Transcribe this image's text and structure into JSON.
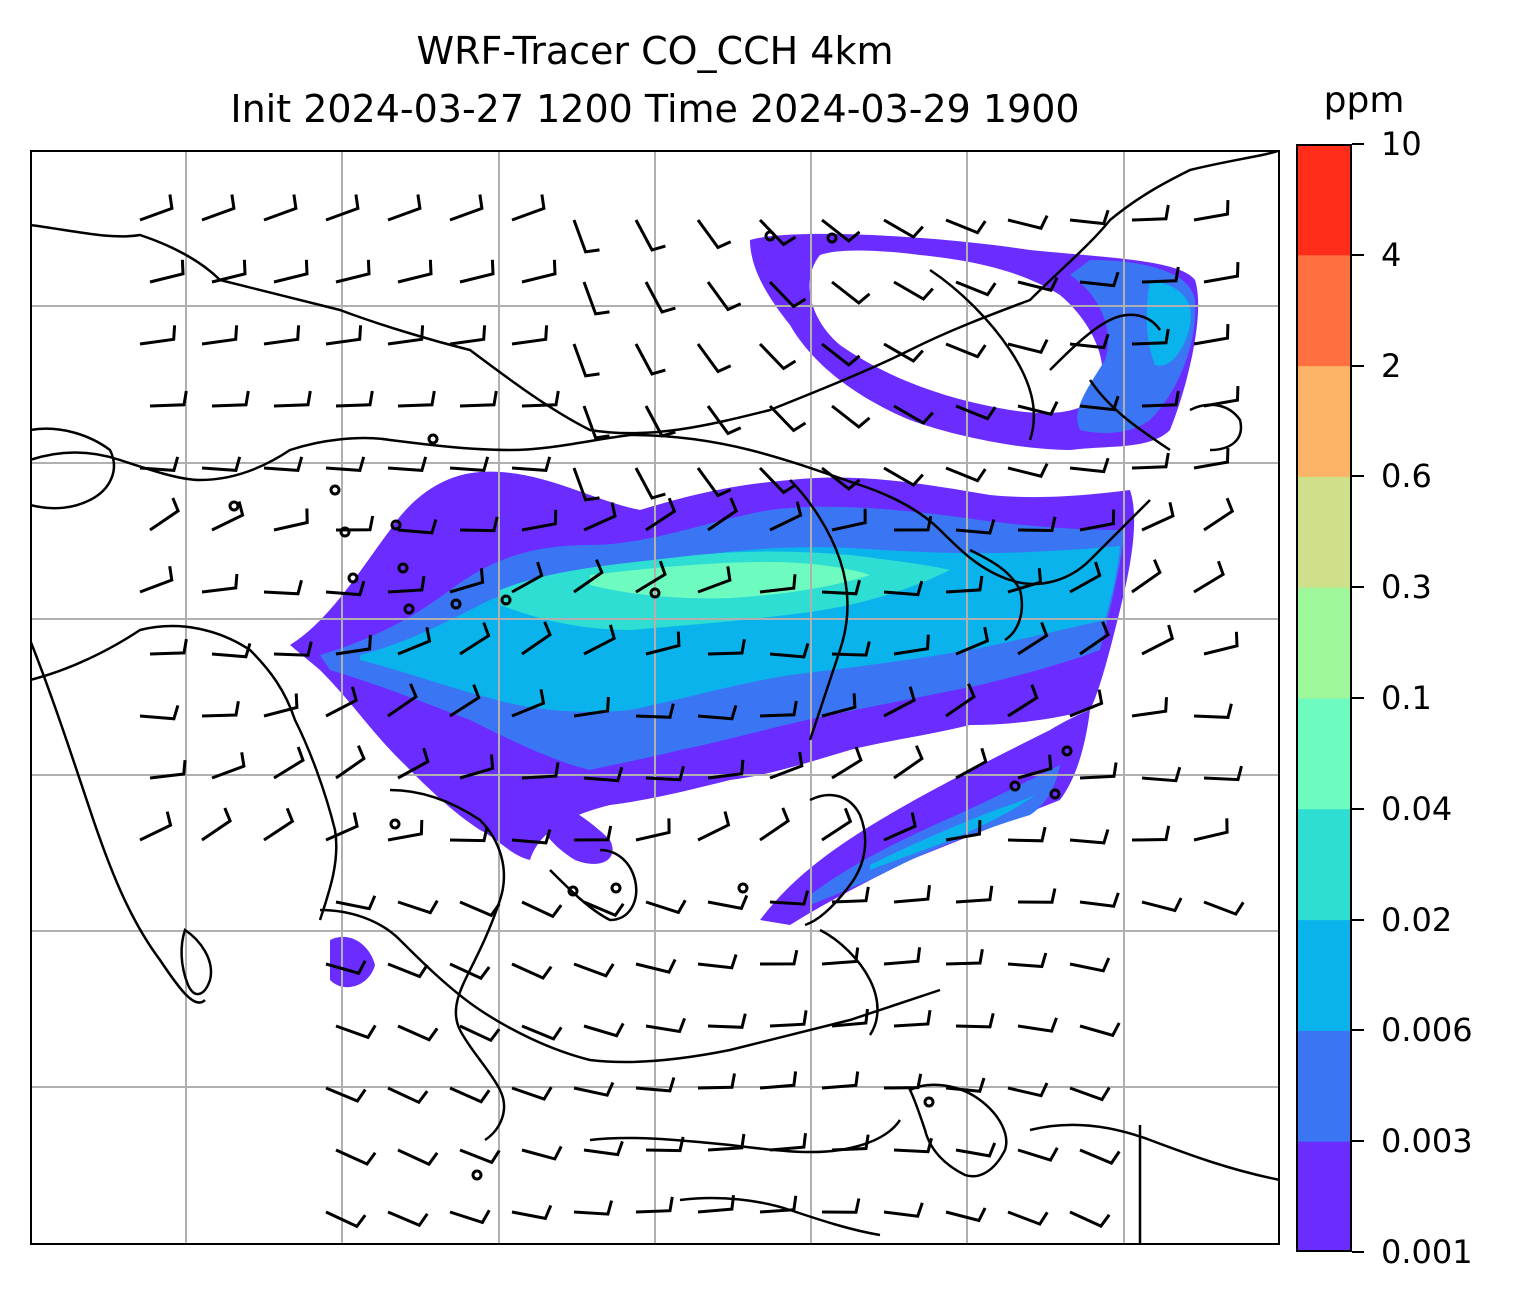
{
  "title": {
    "line1": "WRF-Tracer CO_CCH 4km",
    "line2": "Init 2024-03-27 1200 Time 2024-03-29 1900"
  },
  "colorbar": {
    "unit": "ppm",
    "levels": [
      "0.001",
      "0.003",
      "0.006",
      "0.02",
      "0.04",
      "0.1",
      "0.3",
      "0.6",
      "2",
      "4",
      "10"
    ],
    "colors": [
      "#6a2cff",
      "#3a76f4",
      "#0bb3ec",
      "#2fded3",
      "#6dfbc0",
      "#9ef79a",
      "#cfe08a",
      "#fdb466",
      "#fe7040",
      "#ff2d1a"
    ]
  },
  "map": {
    "gridline_color": "#b0b0b0",
    "coastline_color": "#000000"
  }
}
